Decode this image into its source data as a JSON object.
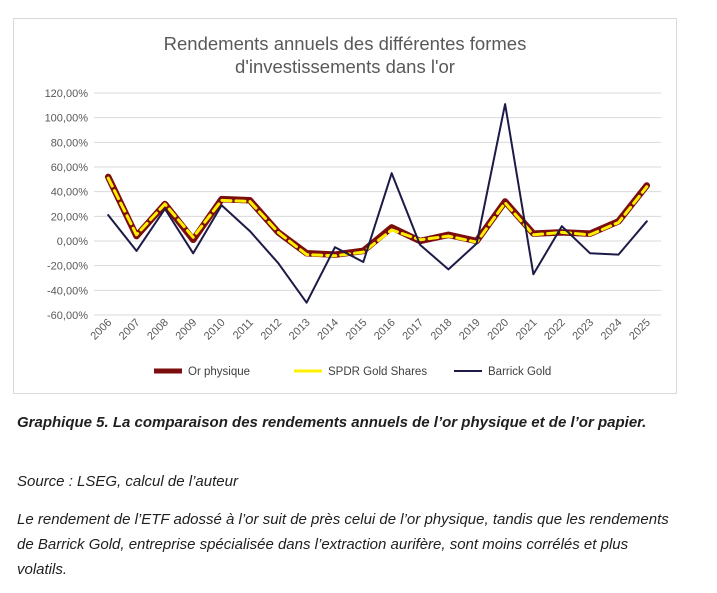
{
  "caption": {
    "title": "Graphique 5. La comparaison des rendements annuels de l’or physique et de l’or papier.",
    "source": "Source : LSEG, calcul de l’auteur",
    "text": "Le rendement de l’ETF adossé à l’or suit de près celui de l’or physique, tandis que les rendements de Barrick Gold, entreprise spécialisée dans l’extraction aurifère, sont moins corrélés et plus volatils."
  },
  "chart_data": {
    "type": "line",
    "title_lines": [
      "Rendements annuels des différentes formes",
      "d'investissements dans l'or"
    ],
    "xlabel": "",
    "ylabel": "",
    "x": [
      "2006",
      "2007",
      "2008",
      "2009",
      "2010",
      "2011",
      "2012",
      "2013",
      "2014",
      "2015",
      "2016",
      "2017",
      "2018",
      "2019",
      "2020",
      "2021",
      "2022",
      "2023",
      "2024",
      "2025"
    ],
    "ylim": [
      -60,
      120
    ],
    "yticks": [
      -60,
      -40,
      -20,
      0,
      20,
      40,
      60,
      80,
      100,
      120
    ],
    "ytick_labels": [
      "-60,00%",
      "-40,00%",
      "-20,00%",
      "0,00%",
      "20,00%",
      "40,00%",
      "60,00%",
      "80,00%",
      "100,00%",
      "120,00%"
    ],
    "grid": true,
    "legend_position": "bottom",
    "series": [
      {
        "name": "Or physique",
        "color": "#7b0d0d",
        "values": [
          52,
          4,
          30,
          1,
          34,
          33,
          7,
          -10,
          -11,
          -8,
          11,
          0,
          5,
          0,
          32,
          6,
          7,
          6,
          16,
          45
        ]
      },
      {
        "name": "SPDR Gold Shares",
        "color": "#ffef00",
        "values": [
          51,
          5,
          30,
          3,
          33,
          32,
          7,
          -11,
          -12,
          -9,
          9,
          1,
          4,
          -1,
          31,
          5,
          7,
          5,
          15,
          44
        ]
      },
      {
        "name": "Barrick Gold",
        "color": "#1c1a47",
        "values": [
          21,
          -8,
          26,
          -10,
          29,
          8,
          -18,
          -50,
          -5,
          -17,
          55,
          -3,
          -23,
          -2,
          111,
          -27,
          12,
          -10,
          -11,
          16
        ]
      }
    ]
  }
}
